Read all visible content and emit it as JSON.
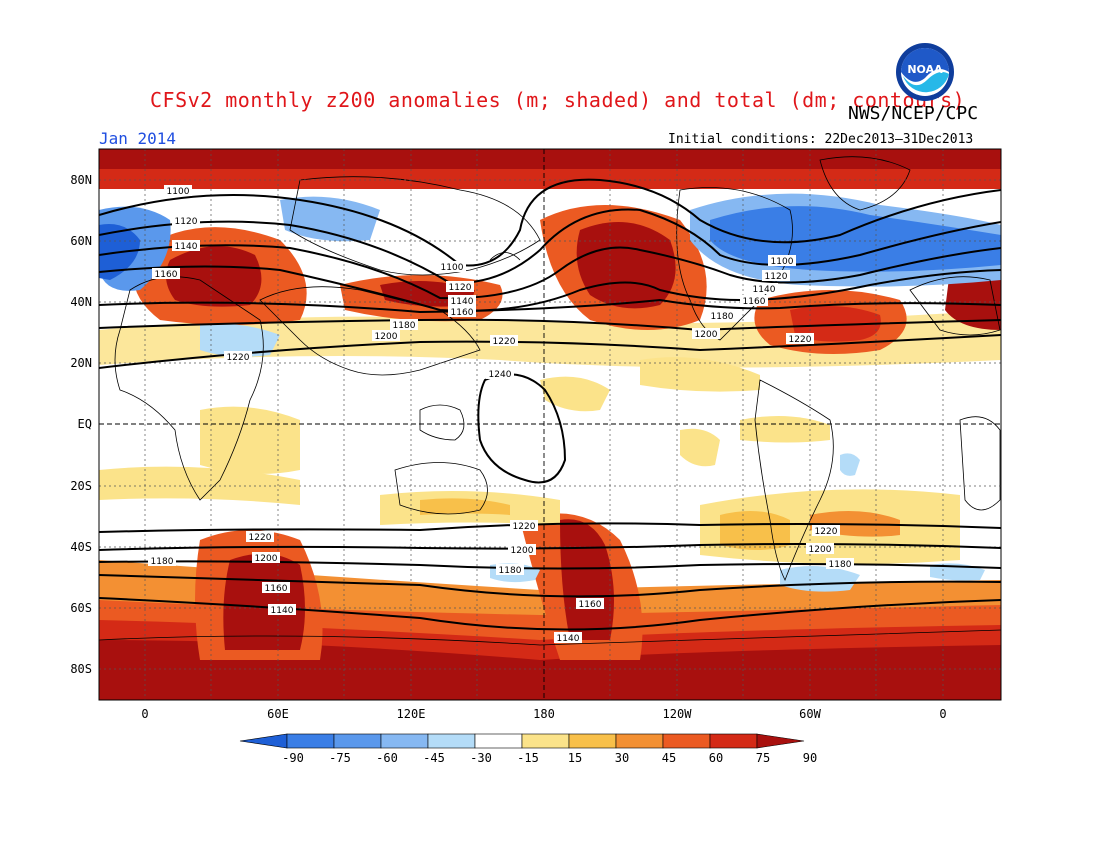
{
  "title": "CFSv2 monthly z200 anomalies (m; shaded) and total (dm; contours)",
  "agency": "NWS/NCEP/CPC",
  "month": "Jan 2014",
  "initial_conditions": "Initial conditions: 22Dec2013–31Dec2013",
  "logo_text": "NOAA",
  "lat_labels": [
    "80N",
    "60N",
    "40N",
    "20N",
    "EQ",
    "20S",
    "40S",
    "60S",
    "80S"
  ],
  "lon_labels": [
    "0",
    "60E",
    "120E",
    "180",
    "120W",
    "60W",
    "0"
  ],
  "colorbar": {
    "labels": [
      "-90",
      "-75",
      "-60",
      "-45",
      "-30",
      "-15",
      "15",
      "30",
      "45",
      "60",
      "75",
      "90"
    ],
    "colors": [
      "#1e5fd6",
      "#3a7ee6",
      "#5a98ec",
      "#86b8f2",
      "#b4dcf8",
      "#ffffff",
      "#fbe38a",
      "#f8c04a",
      "#f39033",
      "#eb5a22",
      "#d42a16",
      "#a8100e"
    ]
  },
  "contour_labels": {
    "c1100a": "1100",
    "c1120a": "1120",
    "c1140a": "1140",
    "c1160a": "1160",
    "c1100b": "1100",
    "c1120b": "1120",
    "c1140b": "1140",
    "c1160b": "1160",
    "c1180a": "1180",
    "c1200a": "1200",
    "c1220a": "1220",
    "c1220b": "1220",
    "c1100c": "1100",
    "c1120c": "1120",
    "c1140c": "1140",
    "c1160c": "1160",
    "c1180b": "1180",
    "c1200b": "1200",
    "c1220c": "1220",
    "c1240": "1240",
    "c1220d": "1220",
    "c1200c": "1200",
    "c1180c": "1180",
    "c1160d": "1160",
    "c1140d": "1140",
    "c1220e": "1220",
    "c1200d": "1200",
    "c1180d": "1180",
    "c1160e": "1160",
    "c1140e": "1140",
    "c1220f": "1220",
    "c1200e": "1200",
    "c1180e": "1180"
  }
}
